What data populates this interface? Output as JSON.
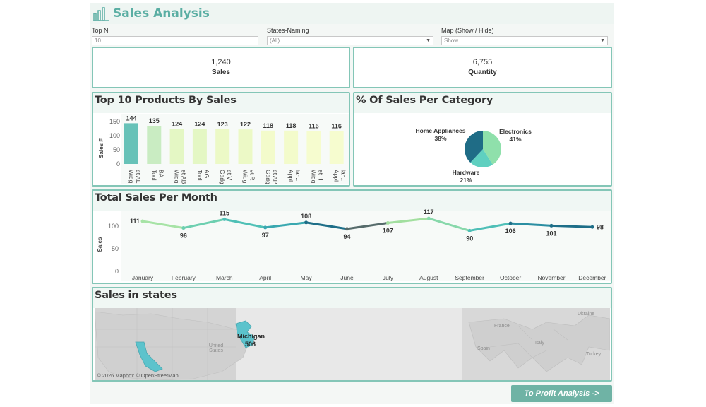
{
  "header": {
    "title": "Sales Analysis"
  },
  "filters": [
    {
      "label": "Top N",
      "value": "10"
    },
    {
      "label": "States-Naming",
      "value": "(All)"
    },
    {
      "label": "Map (Show / Hide)",
      "value": "Show"
    }
  ],
  "kpis": [
    {
      "value": "1,240",
      "label": "Sales"
    },
    {
      "value": "6,755",
      "label": "Quantity"
    }
  ],
  "top_products": {
    "title": "Top 10 Products By Sales",
    "ylabel": "Sales ₣",
    "ticks": [
      "150",
      "100",
      "50",
      "0"
    ]
  },
  "category": {
    "title": "% Of Sales Per Category"
  },
  "monthly": {
    "title": "Total Sales Per Month",
    "ylabel": "Sales",
    "ticks": [
      "100",
      "50",
      "0"
    ]
  },
  "map": {
    "title": "Sales in states",
    "label_state": "Michigan",
    "label_value": "506",
    "attribution": "© 2026 Mapbox © OpenStreetMap",
    "places": [
      "United States",
      "Ukraine",
      "France",
      "Italy",
      "Spain",
      "Turkey"
    ]
  },
  "nav": {
    "profit_button": "To Profit Analysis ->"
  },
  "colors": {
    "accent": "#5aaea3",
    "border": "#84c6b7",
    "pie_dark": "#1f6c86",
    "pie_light": "#8fe0ab",
    "pie_mid": "#5fd0c0"
  },
  "chart_data": [
    {
      "type": "bar",
      "title": "Top 10 Products By Sales",
      "ylabel": "Sales ₣",
      "categories": [
        "Widg et AL",
        "Tool BA",
        "Widg et AB",
        "Tool AG",
        "Gadg et V",
        "Widg et R",
        "Gadg et AP",
        "Appl ian..",
        "Widg et H",
        "Appl ian.."
      ],
      "values": [
        144,
        135,
        124,
        124,
        123,
        122,
        118,
        118,
        116,
        116
      ],
      "ylim": [
        0,
        150
      ]
    },
    {
      "type": "pie",
      "title": "% Of Sales Per Category",
      "categories": [
        "Home Appliances",
        "Electronics",
        "Hardware"
      ],
      "values": [
        38,
        41,
        21
      ],
      "value_labels": [
        "38%",
        "41%",
        "21%"
      ]
    },
    {
      "type": "line",
      "title": "Total Sales Per Month",
      "ylabel": "Sales",
      "categories": [
        "January",
        "February",
        "March",
        "April",
        "May",
        "June",
        "July",
        "August",
        "September",
        "October",
        "November",
        "December"
      ],
      "values": [
        111,
        96,
        115,
        97,
        108,
        94,
        107,
        117,
        90,
        106,
        101,
        98
      ],
      "ylim": [
        0,
        120
      ]
    }
  ]
}
